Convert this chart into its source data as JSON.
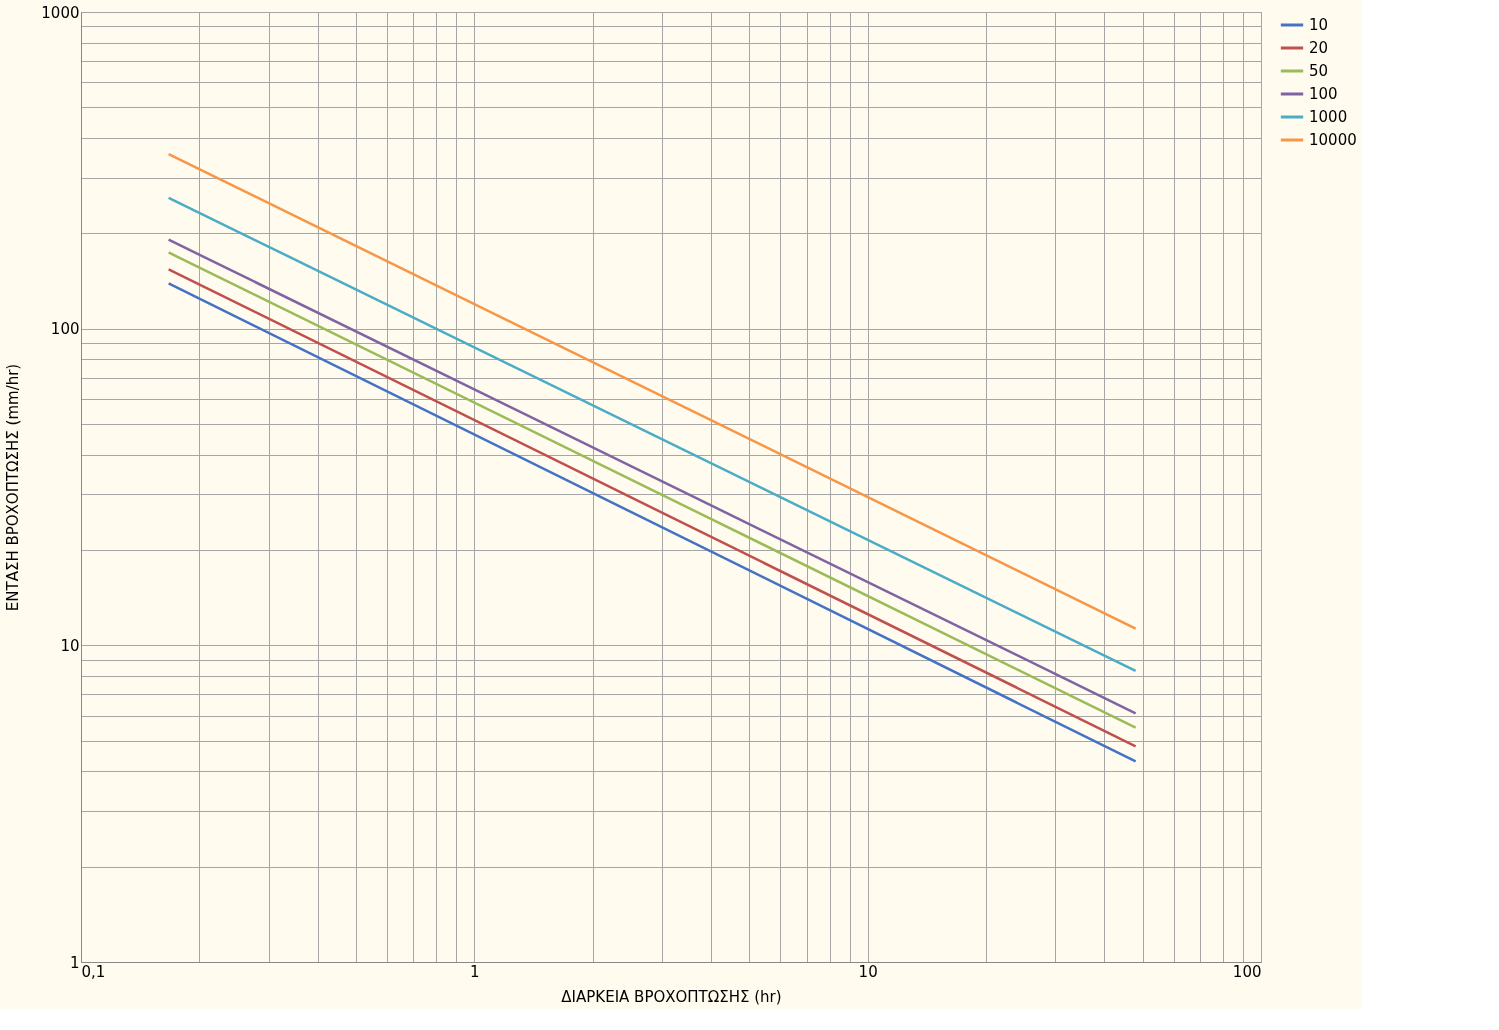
{
  "chart_data": {
    "type": "line",
    "xlabel": "ΔΙΑΡΚΕΙΑ ΒΡΟΧΟΠΤΩΣΗΣ (hr)",
    "ylabel": "ΕΝΤΑΣΗ ΒΡΟΧΟΠΤΩΣΗΣ (mm/hr)",
    "log": "xy",
    "grid": true,
    "legend": "right",
    "marker": "none",
    "line_style": "solid",
    "xlim": [
      0.1,
      100
    ],
    "ylim": [
      1,
      1000
    ],
    "xticks": [
      {
        "value": 0.1,
        "label": "0,1"
      },
      {
        "value": 0.2,
        "label": null
      },
      {
        "value": 0.3,
        "label": null
      },
      {
        "value": 0.4,
        "label": null
      },
      {
        "value": 0.5,
        "label": null
      },
      {
        "value": 0.6,
        "label": null
      },
      {
        "value": 0.7,
        "label": null
      },
      {
        "value": 0.8,
        "label": null
      },
      {
        "value": 0.9,
        "label": null
      },
      1,
      {
        "value": 2,
        "label": null
      },
      {
        "value": 3,
        "label": null
      },
      {
        "value": 4,
        "label": null
      },
      {
        "value": 5,
        "label": null
      },
      {
        "value": 6,
        "label": null
      },
      {
        "value": 7,
        "label": null
      },
      {
        "value": 8,
        "label": null
      },
      {
        "value": 9,
        "label": null
      },
      10,
      {
        "value": 20,
        "label": null
      },
      {
        "value": 30,
        "label": null
      },
      {
        "value": 40,
        "label": null
      },
      {
        "value": 50,
        "label": null
      },
      {
        "value": 60,
        "label": null
      },
      {
        "value": 70,
        "label": null
      },
      {
        "value": 80,
        "label": null
      },
      {
        "value": 90,
        "label": null
      },
      100
    ],
    "yticks": [
      1,
      {
        "value": 2,
        "label": null
      },
      {
        "value": 3,
        "label": null
      },
      {
        "value": 4,
        "label": null
      },
      {
        "value": 5,
        "label": null
      },
      {
        "value": 6,
        "label": null
      },
      {
        "value": 7,
        "label": null
      },
      {
        "value": 8,
        "label": null
      },
      {
        "value": 9,
        "label": null
      },
      10,
      {
        "value": 20,
        "label": null
      },
      {
        "value": 30,
        "label": null
      },
      {
        "value": 40,
        "label": null
      },
      {
        "value": 50,
        "label": null
      },
      {
        "value": 60,
        "label": null
      },
      {
        "value": 70,
        "label": null
      },
      {
        "value": 80,
        "label": null
      },
      {
        "value": 90,
        "label": null
      },
      100,
      {
        "value": 200,
        "label": null
      },
      {
        "value": 300,
        "label": null
      },
      {
        "value": 400,
        "label": null
      },
      {
        "value": 500,
        "label": null
      },
      {
        "value": 600,
        "label": null
      },
      {
        "value": 700,
        "label": null
      },
      {
        "value": 800,
        "label": null
      },
      {
        "value": 900,
        "label": null
      },
      1000
    ],
    "x": [
      0.167,
      48
    ],
    "series": [
      {
        "name": "10",
        "color": "#4472c4",
        "values": [
          139,
          4.3
        ]
      },
      {
        "name": "20",
        "color": "#c0504d",
        "values": [
          154,
          4.8
        ]
      },
      {
        "name": "50",
        "color": "#9bbb59",
        "values": [
          174,
          5.5
        ]
      },
      {
        "name": "100",
        "color": "#8064a2",
        "values": [
          191,
          6.1
        ]
      },
      {
        "name": "1000",
        "color": "#4bacc6",
        "values": [
          259,
          8.3
        ]
      },
      {
        "name": "10000",
        "color": "#f79646",
        "values": [
          356,
          11.3
        ]
      }
    ]
  }
}
